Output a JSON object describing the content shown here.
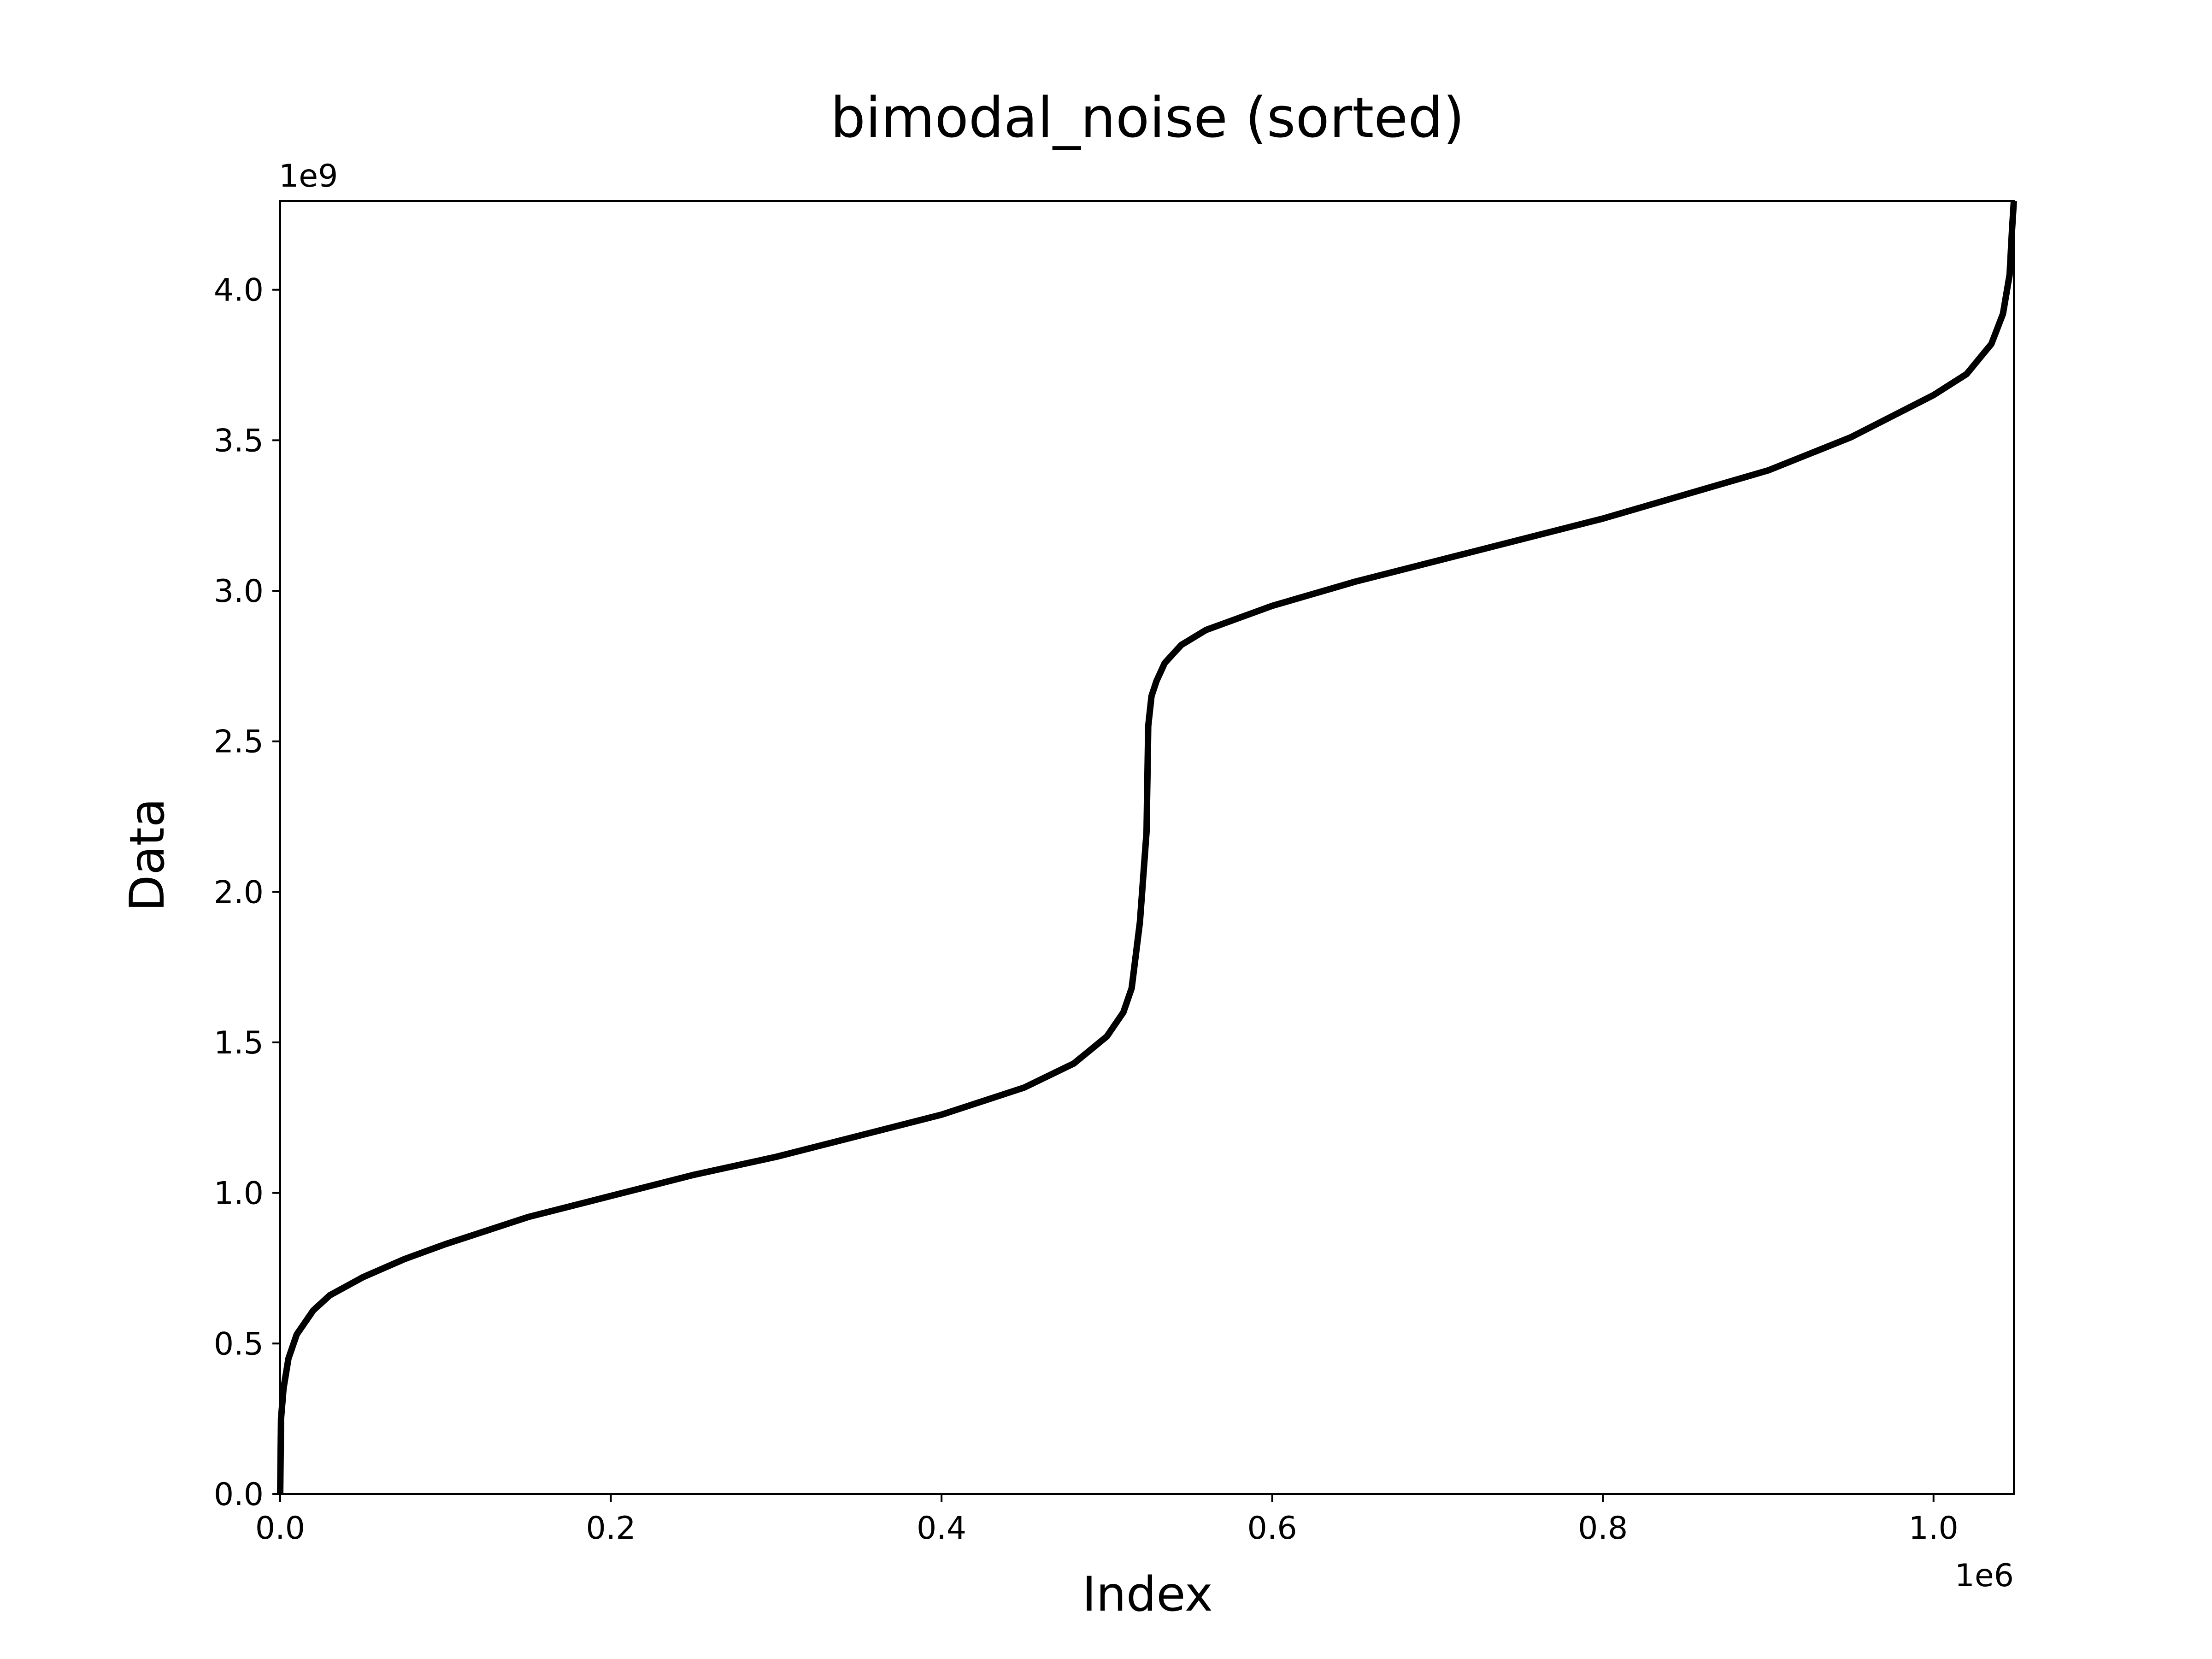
{
  "chart_data": {
    "type": "line",
    "title": "bimodal_noise (sorted)",
    "xlabel": "Index",
    "ylabel": "Data",
    "x_offset_label": "1e6",
    "y_offset_label": "1e9",
    "xlim": [
      0,
      1.048576
    ],
    "ylim": [
      0,
      4.295
    ],
    "x_ticks": [
      0.0,
      0.2,
      0.4,
      0.6,
      0.8,
      1.0
    ],
    "x_tick_labels": [
      "0.0",
      "0.2",
      "0.4",
      "0.6",
      "0.8",
      "1.0"
    ],
    "y_ticks": [
      0.0,
      0.5,
      1.0,
      1.5,
      2.0,
      2.5,
      3.0,
      3.5,
      4.0
    ],
    "y_tick_labels": [
      "0.0",
      "0.5",
      "1.0",
      "1.5",
      "2.0",
      "2.5",
      "3.0",
      "3.5",
      "4.0"
    ],
    "grid": false,
    "legend": false,
    "line_color": "#000000",
    "series": [
      {
        "x": [
          0.0,
          0.0005,
          0.002,
          0.005,
          0.01,
          0.02,
          0.03,
          0.05,
          0.075,
          0.1,
          0.15,
          0.2,
          0.25,
          0.3,
          0.35,
          0.4,
          0.45,
          0.48,
          0.5,
          0.51,
          0.515,
          0.52,
          0.522,
          0.524,
          0.5243,
          0.5246,
          0.525,
          0.527,
          0.53,
          0.535,
          0.545,
          0.56,
          0.58,
          0.6,
          0.65,
          0.7,
          0.75,
          0.8,
          0.85,
          0.9,
          0.95,
          1.0,
          1.02,
          1.035,
          1.042,
          1.046,
          1.0475,
          1.048576
        ],
        "y": [
          0.0,
          0.25,
          0.35,
          0.45,
          0.53,
          0.61,
          0.66,
          0.72,
          0.78,
          0.83,
          0.92,
          0.99,
          1.06,
          1.12,
          1.19,
          1.26,
          1.35,
          1.43,
          1.52,
          1.6,
          1.68,
          1.9,
          2.05,
          2.2,
          2.3,
          2.4,
          2.55,
          2.65,
          2.7,
          2.76,
          2.82,
          2.87,
          2.91,
          2.95,
          3.03,
          3.1,
          3.17,
          3.24,
          3.32,
          3.4,
          3.51,
          3.65,
          3.72,
          3.82,
          3.92,
          4.05,
          4.2,
          4.295
        ]
      }
    ]
  }
}
